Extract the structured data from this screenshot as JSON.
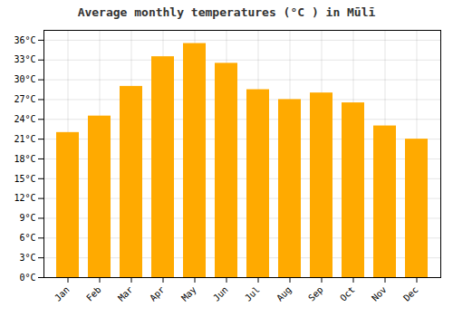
{
  "chart_data": {
    "type": "bar",
    "title": "Average monthly temperatures (°C ) in Mūlī",
    "categories": [
      "Jan",
      "Feb",
      "Mar",
      "Apr",
      "May",
      "Jun",
      "Jul",
      "Aug",
      "Sep",
      "Oct",
      "Nov",
      "Dec"
    ],
    "values": [
      22.0,
      24.5,
      29.0,
      33.5,
      35.5,
      32.5,
      28.5,
      27.0,
      28.0,
      26.5,
      23.0,
      21.0
    ],
    "color": "#FFAA00",
    "ylim": [
      0,
      37.5
    ],
    "yticks": [
      {
        "value": 0,
        "label": "0°C"
      },
      {
        "value": 3,
        "label": "3°C"
      },
      {
        "value": 6,
        "label": "6°C"
      },
      {
        "value": 9,
        "label": "9°C"
      },
      {
        "value": 12,
        "label": "12°C"
      },
      {
        "value": 15,
        "label": "15°C"
      },
      {
        "value": 18,
        "label": "18°C"
      },
      {
        "value": 21,
        "label": "21°C"
      },
      {
        "value": 24,
        "label": "24°C"
      },
      {
        "value": 27,
        "label": "27°C"
      },
      {
        "value": 30,
        "label": "30°C"
      },
      {
        "value": 33,
        "label": "33°C"
      },
      {
        "value": 36,
        "label": "36°C"
      }
    ],
    "grid": true
  }
}
